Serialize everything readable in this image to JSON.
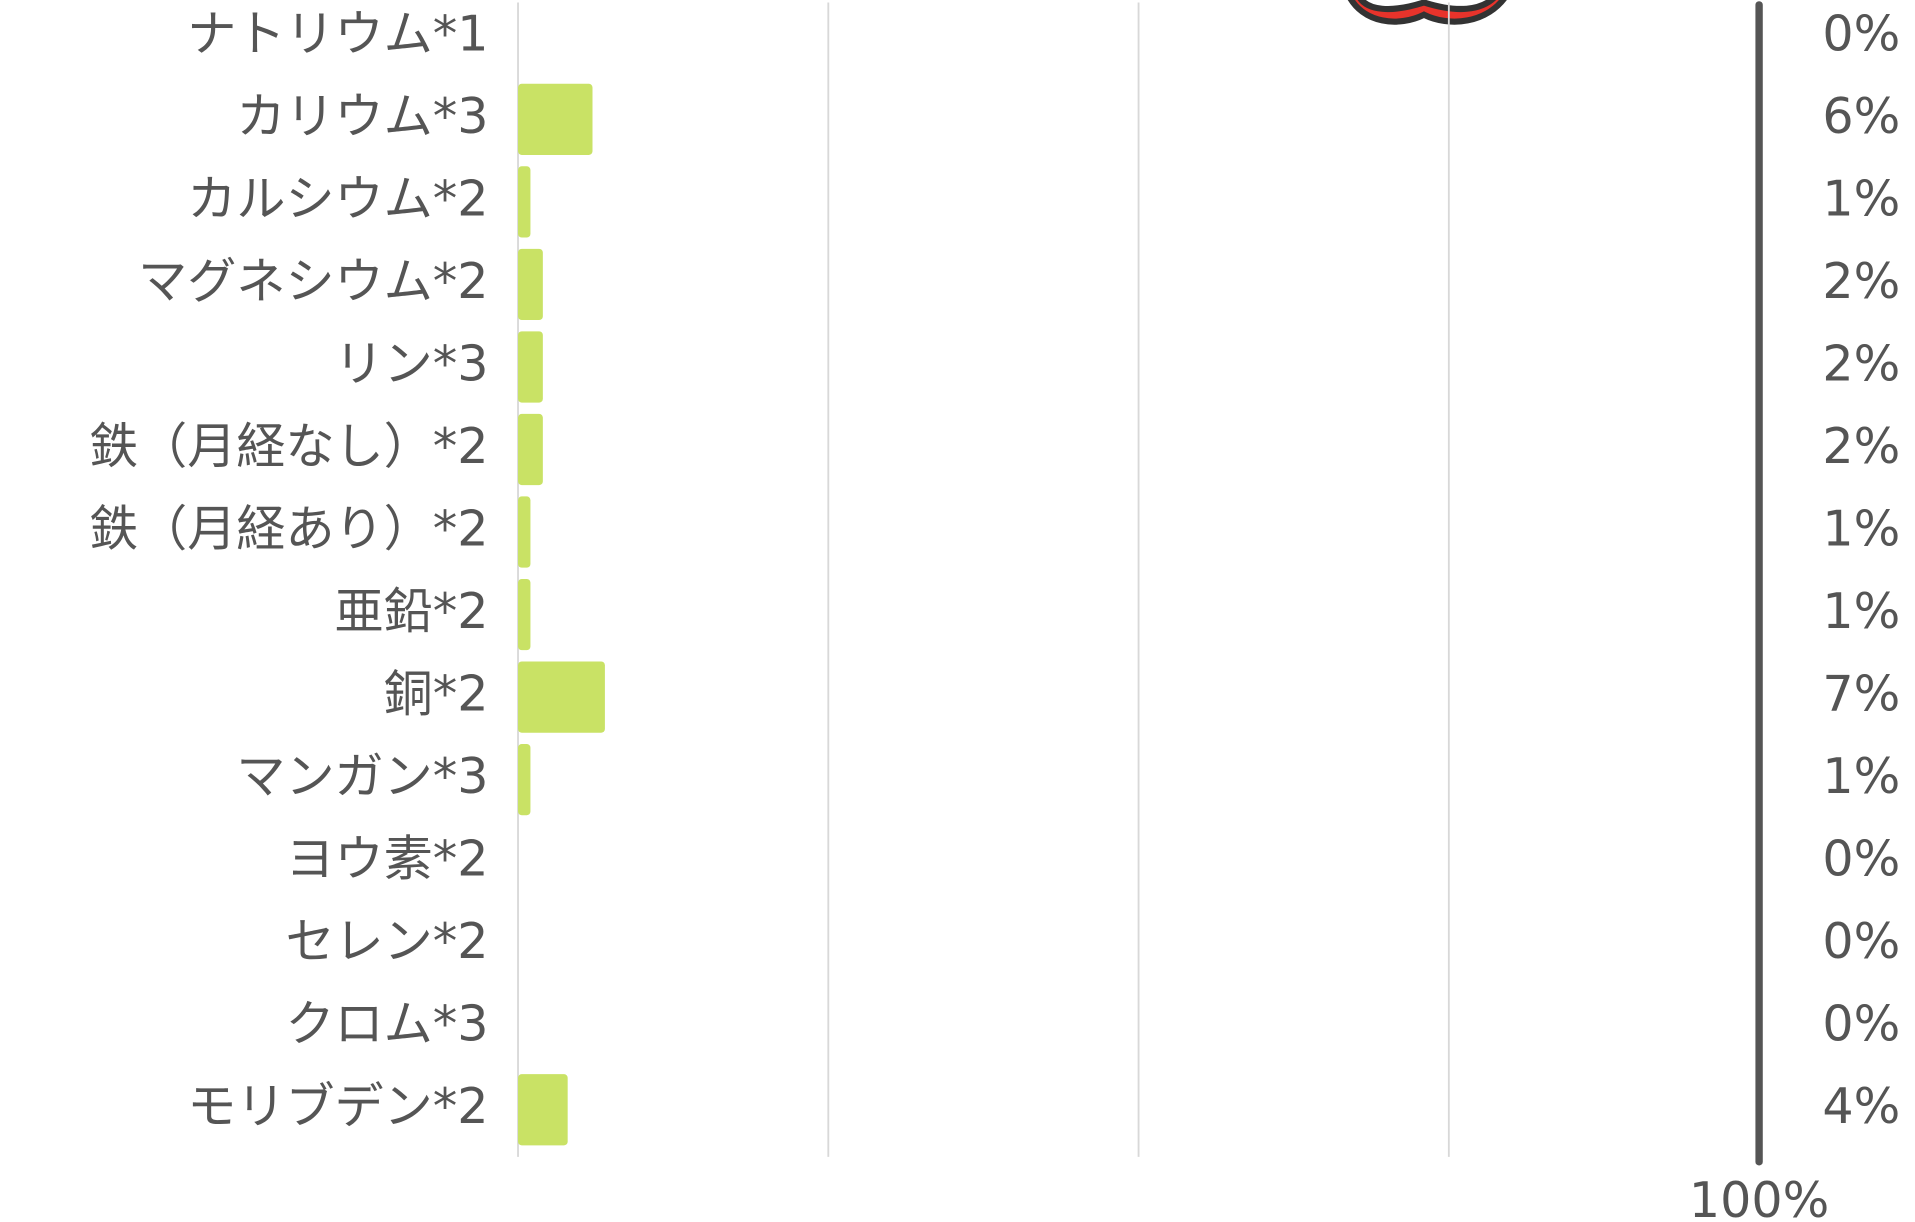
{
  "chart_data": {
    "type": "hbar",
    "categories": [
      "ナトリウム*1",
      "カリウム*3",
      "カルシウム*2",
      "マグネシウム*2",
      "リン*3",
      "鉄（月経なし）*2",
      "鉄（月経あり）*2",
      "亜鉛*2",
      "銅*2",
      "マンガン*3",
      "ヨウ素*2",
      "セレン*2",
      "クロム*3",
      "モリブデン*2"
    ],
    "values": [
      0,
      6,
      1,
      2,
      2,
      2,
      1,
      1,
      7,
      1,
      0,
      0,
      0,
      4
    ],
    "value_labels": [
      "0%",
      "6%",
      "1%",
      "2%",
      "2%",
      "2%",
      "1%",
      "1%",
      "7%",
      "1%",
      "0%",
      "0%",
      "0%",
      "4%"
    ],
    "color": "#c9e265",
    "xlim": [
      0,
      100
    ],
    "xticks": [
      {
        "value": 100,
        "label": "100%"
      }
    ],
    "grid_lines": [
      0,
      25,
      50,
      75
    ]
  }
}
